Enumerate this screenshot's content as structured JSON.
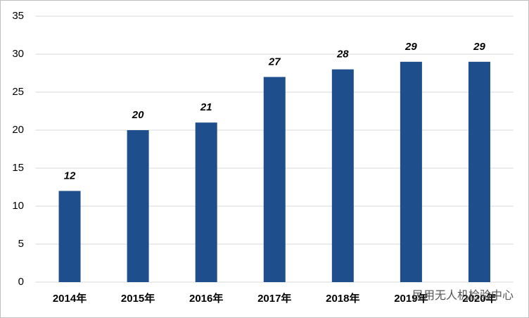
{
  "chart_data": {
    "type": "bar",
    "categories": [
      "2014年",
      "2015年",
      "2016年",
      "2017年",
      "2018年",
      "2019年",
      "2020年"
    ],
    "values": [
      12,
      20,
      21,
      27,
      28,
      29,
      29
    ],
    "color": "#1f4e8c",
    "ylim": [
      0,
      35
    ],
    "yticks": [
      0,
      5,
      10,
      15,
      20,
      25,
      30,
      35
    ],
    "grid": true,
    "watermark": "民用无人机检验中心"
  }
}
